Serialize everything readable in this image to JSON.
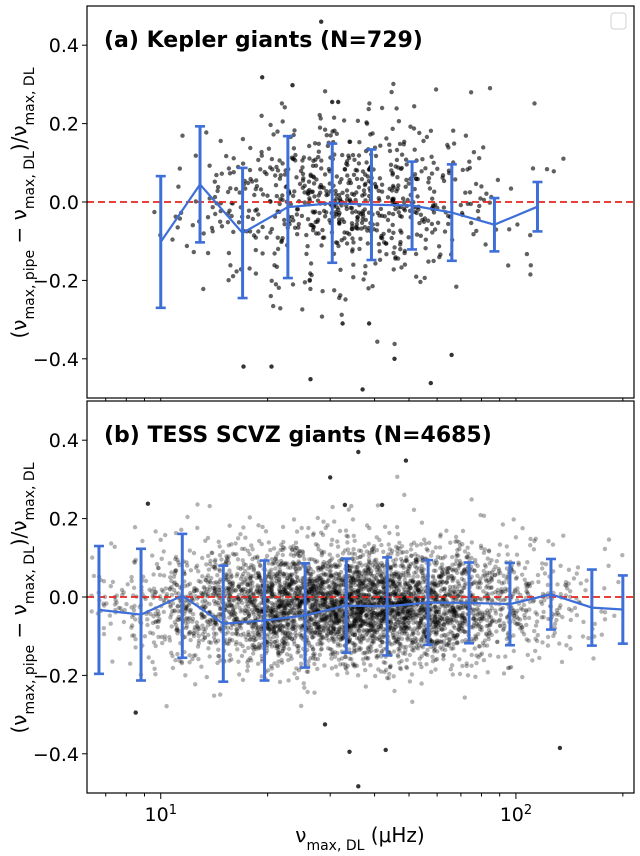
{
  "chart_data": [
    {
      "type": "scatter",
      "title": "(a) Kepler giants (N=729)",
      "xlabel": "",
      "ylabel": "(ν_max,pipe − ν_max,DL)/ν_max,DL",
      "xscale": "log",
      "xlim": [
        6.2,
        215
      ],
      "ylim": [
        -0.5,
        0.5
      ],
      "yticks": [
        "0.4",
        "0.2",
        "0.0",
        "−0.2",
        "−0.4"
      ],
      "yticks_values": [
        0.4,
        0.2,
        0.0,
        -0.2,
        -0.4
      ],
      "reference_line": {
        "y": 0.0,
        "color": "#e8251f",
        "style": "dashed"
      },
      "scatter_color": "#000000",
      "legend": "top-right, empty",
      "scatter_cloud": {
        "n": 729,
        "x_center": 33,
        "x_log_spread": 0.2,
        "y_mean": 0.0,
        "y_sd": 0.1
      },
      "series": [
        {
          "style": "line-errorbar",
          "color": "#3e6fd8",
          "x": [
            10.0,
            12.9,
            17.0,
            22.8,
            30.4,
            39.2,
            51.0,
            66.0,
            87.0,
            115.0
          ],
          "y": [
            -0.102,
            0.045,
            -0.079,
            -0.013,
            -0.003,
            -0.007,
            -0.009,
            -0.027,
            -0.058,
            -0.012
          ],
          "yerr": [
            0.168,
            0.148,
            0.166,
            0.181,
            0.152,
            0.141,
            0.112,
            0.123,
            0.068,
            0.063
          ]
        }
      ],
      "outliers_shown": [
        {
          "x": 19.3,
          "y": 0.318
        },
        {
          "x": 28.3,
          "y": 0.46
        },
        {
          "x": 23.5,
          "y": 0.298
        },
        {
          "x": 30.4,
          "y": 0.255
        },
        {
          "x": 31.6,
          "y": 0.255
        },
        {
          "x": 17.1,
          "y": -0.42
        },
        {
          "x": 20.5,
          "y": -0.42
        },
        {
          "x": 26.4,
          "y": -0.452
        },
        {
          "x": 37.0,
          "y": -0.478
        },
        {
          "x": 57.6,
          "y": -0.462
        },
        {
          "x": 65.9,
          "y": -0.39
        },
        {
          "x": 45.5,
          "y": -0.4
        },
        {
          "x": 32.5,
          "y": -0.31
        },
        {
          "x": 38.6,
          "y": -0.31
        }
      ]
    },
    {
      "type": "scatter",
      "title": "(b) TESS SCVZ giants (N=4685)",
      "xlabel": "ν_max,DL (μHz)",
      "ylabel": "(ν_max,pipe − ν_max,DL)/ν_max,DL",
      "xscale": "log",
      "xlim": [
        6.2,
        215
      ],
      "ylim": [
        -0.5,
        0.5
      ],
      "xticks": [
        "10¹",
        "10²"
      ],
      "xticks_values": [
        10,
        100
      ],
      "yticks": [
        "0.4",
        "0.2",
        "0.0",
        "−0.2",
        "−0.4"
      ],
      "yticks_values": [
        0.4,
        0.2,
        0.0,
        -0.2,
        -0.4
      ],
      "reference_line": {
        "y": 0.0,
        "color": "#e8251f",
        "style": "dashed"
      },
      "scatter_color": "#000000",
      "scatter_cloud": {
        "n": 4685,
        "x_center": 33,
        "x_log_spread": 0.28,
        "y_mean": -0.02,
        "y_sd": 0.075
      },
      "series": [
        {
          "style": "line-errorbar",
          "color": "#3e6fd8",
          "x": [
            6.7,
            8.8,
            11.5,
            15.0,
            19.6,
            25.5,
            33.3,
            43.4,
            56.6,
            73.8,
            96.2,
            125.5,
            163.6,
            200.0
          ],
          "y": [
            -0.033,
            -0.045,
            0.003,
            -0.068,
            -0.06,
            -0.047,
            -0.022,
            -0.024,
            -0.014,
            -0.015,
            -0.018,
            0.007,
            -0.027,
            -0.032
          ],
          "yerr": [
            0.163,
            0.168,
            0.158,
            0.148,
            0.153,
            0.133,
            0.12,
            0.125,
            0.108,
            0.103,
            0.105,
            0.09,
            0.097,
            0.087
          ]
        }
      ],
      "outliers_shown": [
        {
          "x": 36.0,
          "y": 0.37
        },
        {
          "x": 49.0,
          "y": 0.348
        },
        {
          "x": 30.0,
          "y": 0.305
        },
        {
          "x": 33.0,
          "y": 0.235
        },
        {
          "x": 42.0,
          "y": 0.235
        },
        {
          "x": 9.2,
          "y": 0.238
        },
        {
          "x": 36.0,
          "y": -0.483
        },
        {
          "x": 34.0,
          "y": -0.395
        },
        {
          "x": 43.0,
          "y": -0.39
        },
        {
          "x": 8.5,
          "y": -0.295
        },
        {
          "x": 133.0,
          "y": -0.385
        },
        {
          "x": 29.0,
          "y": -0.325
        }
      ]
    }
  ]
}
